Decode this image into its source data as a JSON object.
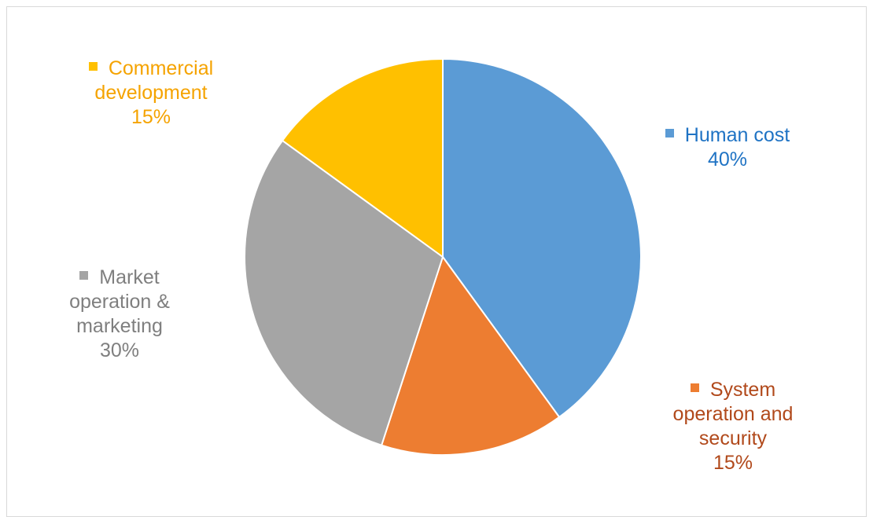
{
  "chart_data": {
    "type": "pie",
    "title": "",
    "start_angle_deg": 0,
    "direction": "clockwise",
    "slices": [
      {
        "label": "Human cost",
        "value": 40,
        "value_label": "40%",
        "color": "#5b9bd5",
        "label_color": "#1f73c4"
      },
      {
        "label": "System operation and security",
        "value": 15,
        "value_label": "15%",
        "color": "#ed7d31",
        "label_color": "#b1491b"
      },
      {
        "label": "Market operation & marketing",
        "value": 30,
        "value_label": "30%",
        "color": "#a5a5a5",
        "label_color": "#7f7f7f"
      },
      {
        "label": "Commercial development",
        "value": 15,
        "value_label": "15%",
        "color": "#ffc000",
        "label_color": "#f5a300"
      }
    ],
    "data_label_lines": [
      [
        "Human cost",
        "40%"
      ],
      [
        "System",
        "operation and",
        "security",
        "15%"
      ],
      [
        "Market",
        "operation &",
        "marketing",
        "30%"
      ],
      [
        "Commercial",
        "development",
        "15%"
      ]
    ],
    "slice_border_color": "#ffffff"
  }
}
